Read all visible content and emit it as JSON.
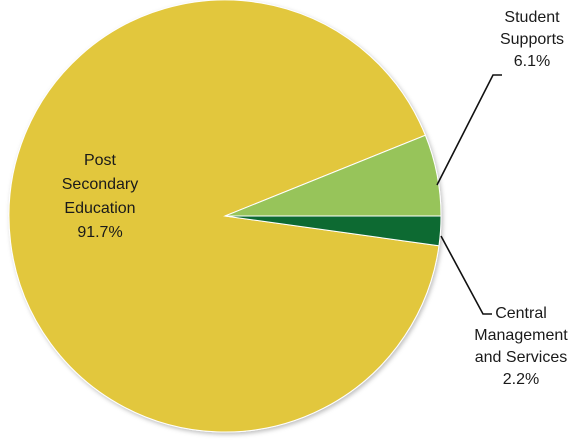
{
  "chart_data": {
    "type": "pie",
    "title": "",
    "slices": [
      {
        "name": "Post Secondary Education",
        "label_lines": [
          "Post",
          "Secondary",
          "Education"
        ],
        "value": 91.7,
        "value_label": "91.7%",
        "color": "#e2c73c"
      },
      {
        "name": "Central Management and Services",
        "label_lines": [
          "Central",
          "Management",
          "and Services"
        ],
        "value": 2.2,
        "value_label": "2.2%",
        "color": "#0e6b33"
      },
      {
        "name": "Student Supports",
        "label_lines": [
          "Student",
          "Supports"
        ],
        "value": 6.1,
        "value_label": "6.1%",
        "color": "#97c45a"
      }
    ],
    "legend": "none",
    "grid": false
  }
}
